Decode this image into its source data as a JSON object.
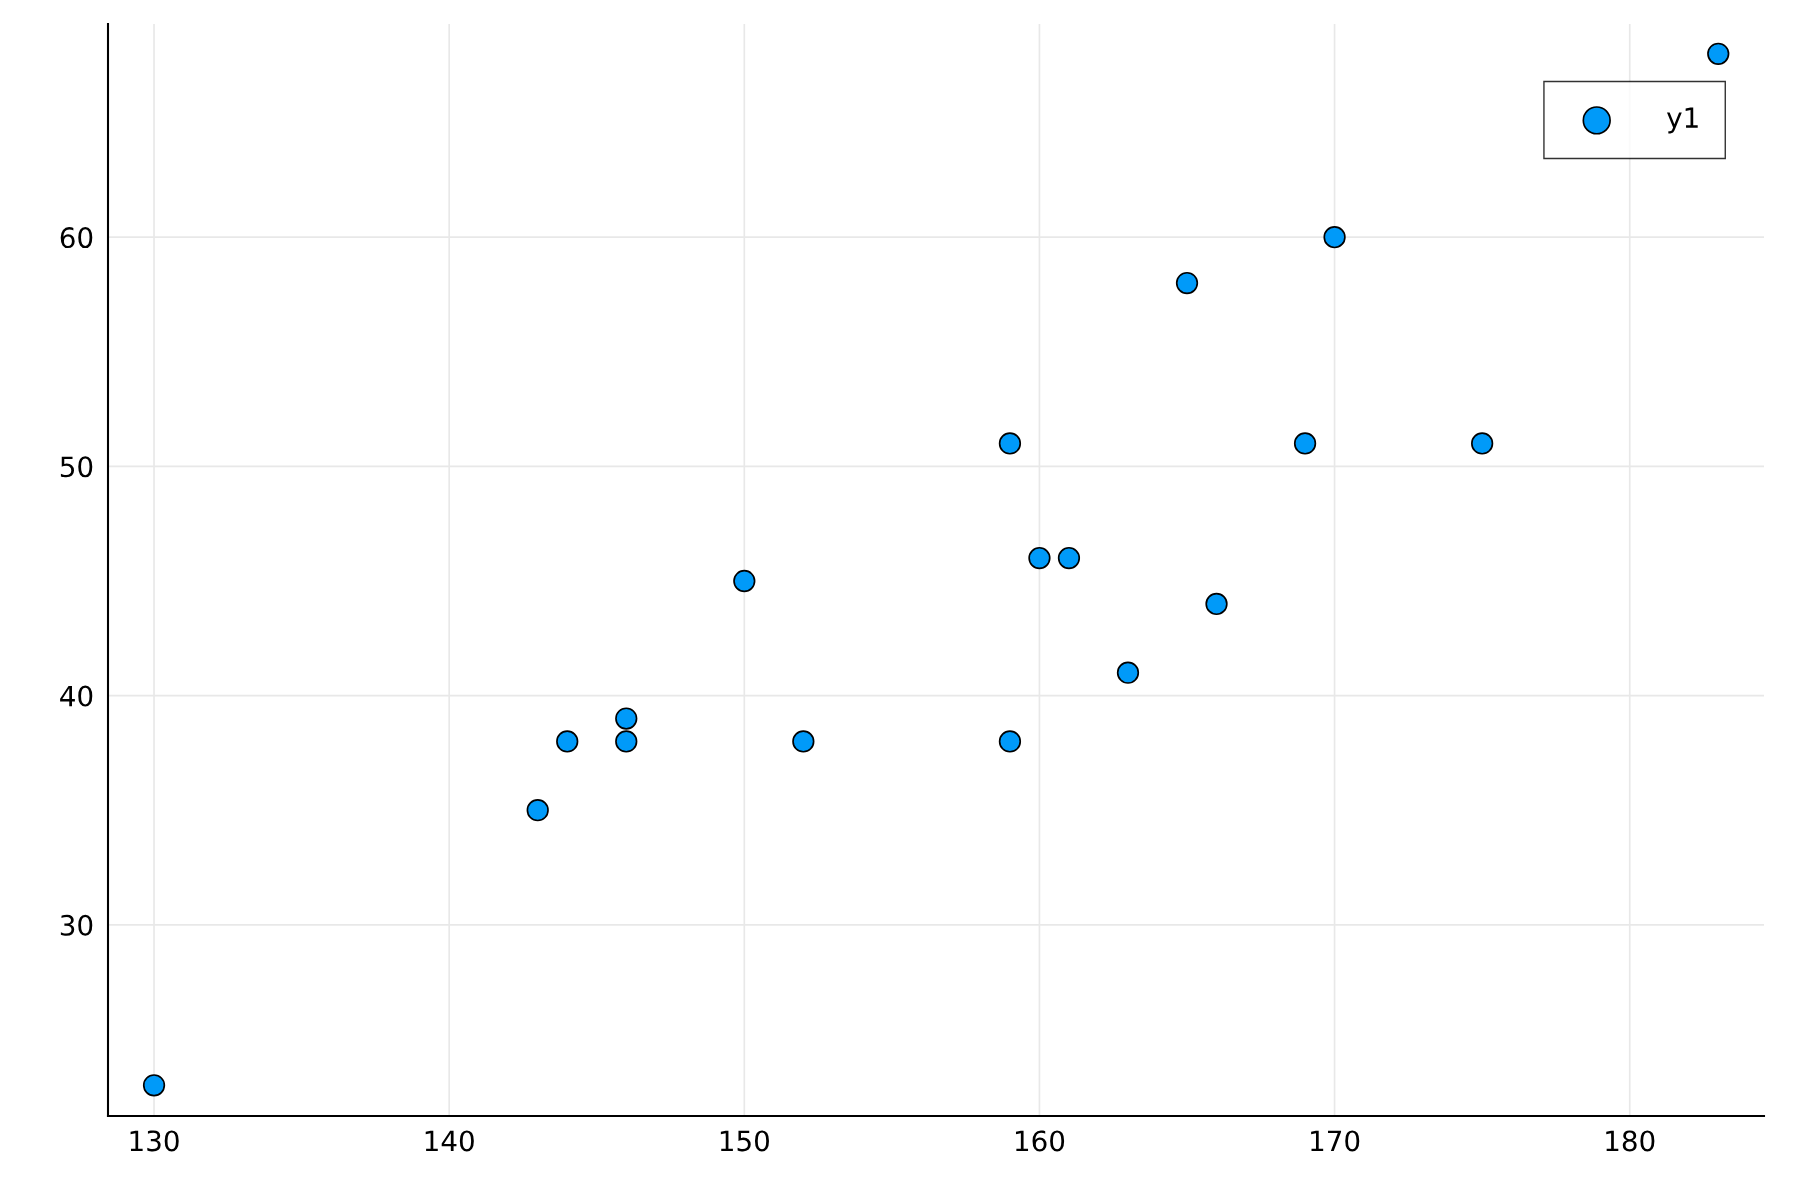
{
  "chart_data": {
    "type": "scatter",
    "series": [
      {
        "name": "y1",
        "color": "#009af9",
        "x": [
          130,
          143,
          144,
          146,
          146,
          150,
          152,
          159,
          159,
          160,
          161,
          163,
          165,
          166,
          169,
          170,
          175,
          183
        ],
        "values": [
          23,
          35,
          38,
          39,
          38,
          45,
          38,
          51,
          38,
          46,
          46,
          41,
          58,
          44,
          51,
          60,
          51,
          68
        ]
      }
    ],
    "xlim": [
      128.44,
      184.55
    ],
    "xticks": [
      130,
      140,
      150,
      160,
      170,
      180
    ],
    "ylim": [
      21.66,
      69.3
    ],
    "yticks": [
      30,
      40,
      50,
      60
    ],
    "grid": true,
    "legend": "top right",
    "marker": "circle"
  }
}
